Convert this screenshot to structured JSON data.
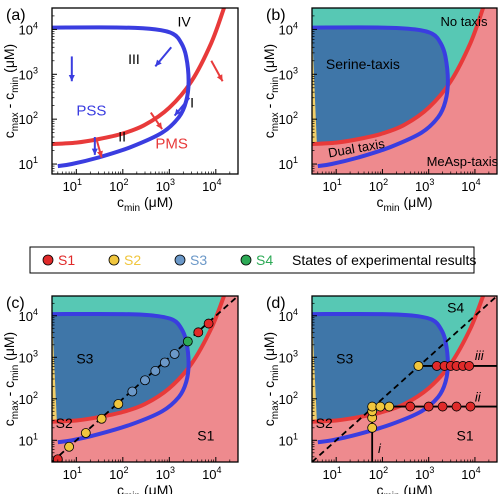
{
  "colors": {
    "blue_curve": "#3a3de0",
    "red_curve": "#e83a3a",
    "region_pms": "#ee8a8e",
    "region_serine": "#3f76a8",
    "region_dual": "#f2cf6a",
    "region_notaxis": "#57c8b4",
    "s1": "#e02a2a",
    "s2": "#f0c63e",
    "s3": "#6b98c8",
    "s4": "#2daa56"
  },
  "axis_text": {
    "xlabel_base": "c",
    "xlabel_sub": "min",
    "xlabel_unit": " (μM)",
    "ylabel": "c",
    "ylabel_sub1": "max",
    "ylabel_mid": " - c",
    "ylabel_sub2": "min",
    "ylabel_unit": " (μM)",
    "tick_base": "10",
    "x_exponents": [
      "1",
      "2",
      "3",
      "4"
    ],
    "y_exponents": [
      "1",
      "2",
      "3",
      "4"
    ]
  },
  "panels": {
    "a": {
      "label": "(a)",
      "region_labels": [
        "PSS",
        "PMS",
        "I",
        "II",
        "III",
        "IV"
      ]
    },
    "b": {
      "label": "(b)",
      "region_labels": [
        "No taxis",
        "Serine-taxis",
        "Dual taxis",
        "MeAsp-taxis"
      ]
    },
    "c": {
      "label": "(c)",
      "region_labels": [
        "S3",
        "S2",
        "S1"
      ]
    },
    "d": {
      "label": "(d)",
      "region_labels": [
        "S4",
        "S3",
        "S2",
        "S1",
        "i",
        "ii",
        "iii"
      ]
    }
  },
  "legend": {
    "items": [
      {
        "label": "S1"
      },
      {
        "label": "S2"
      },
      {
        "label": "S3"
      },
      {
        "label": "S4"
      }
    ],
    "caption": "States of experimental results"
  },
  "chart_data": [
    {
      "type": "line",
      "panel": "a",
      "xscale": "log",
      "yscale": "log",
      "xlim": [
        3,
        30000
      ],
      "ylim": [
        6,
        30000
      ],
      "series": [
        {
          "curve": "blue",
          "x": [
            3,
            100,
            500,
            1200,
            1800,
            2300,
            2600,
            2300,
            1600,
            700,
            150,
            30,
            8,
            4
          ],
          "y": [
            11000,
            11000,
            10000,
            8000,
            5000,
            2500,
            700,
            250,
            110,
            50,
            24,
            14,
            10,
            9
          ]
        },
        {
          "curve": "red",
          "x": [
            3,
            10,
            30,
            100,
            300,
            1000,
            3000,
            8000,
            15000
          ],
          "y": [
            28,
            30,
            36,
            48,
            75,
            180,
            700,
            5000,
            30000
          ]
        }
      ]
    },
    {
      "type": "area",
      "panel": "b",
      "xscale": "log",
      "yscale": "log",
      "xlim": [
        3,
        30000
      ],
      "ylim": [
        6,
        30000
      ]
    },
    {
      "type": "scatter",
      "panel": "c",
      "xscale": "log",
      "yscale": "log",
      "xlim": [
        3,
        30000
      ],
      "ylim": [
        3,
        30000
      ],
      "points": [
        {
          "state": "S1",
          "x": 4,
          "y": 3.5
        },
        {
          "state": "S2",
          "x": 7,
          "y": 7
        },
        {
          "state": "S2",
          "x": 16,
          "y": 15
        },
        {
          "state": "S2",
          "x": 35,
          "y": 33
        },
        {
          "state": "S2",
          "x": 80,
          "y": 75
        },
        {
          "state": "S3",
          "x": 160,
          "y": 150
        },
        {
          "state": "S3",
          "x": 300,
          "y": 280
        },
        {
          "state": "S3",
          "x": 500,
          "y": 470
        },
        {
          "state": "S3",
          "x": 800,
          "y": 750
        },
        {
          "state": "S3",
          "x": 1300,
          "y": 1200
        },
        {
          "state": "S4",
          "x": 2500,
          "y": 2400
        },
        {
          "state": "S1",
          "x": 4200,
          "y": 4000
        },
        {
          "state": "S1",
          "x": 7000,
          "y": 6500
        }
      ]
    },
    {
      "type": "scatter",
      "panel": "d",
      "xscale": "log",
      "yscale": "log",
      "xlim": [
        3,
        30000
      ],
      "ylim": [
        3,
        30000
      ],
      "points": [
        {
          "state": "S2",
          "line": "i",
          "x": 60,
          "y": 20
        },
        {
          "state": "S2",
          "line": "i",
          "x": 60,
          "y": 35
        },
        {
          "state": "S2",
          "line": "i",
          "x": 60,
          "y": 50
        },
        {
          "state": "S2",
          "line": "ii",
          "x": 60,
          "y": 65
        },
        {
          "state": "S2",
          "line": "ii",
          "x": 90,
          "y": 65
        },
        {
          "state": "S2",
          "line": "ii",
          "x": 140,
          "y": 65
        },
        {
          "state": "S1",
          "line": "ii",
          "x": 400,
          "y": 65
        },
        {
          "state": "S1",
          "line": "ii",
          "x": 1000,
          "y": 65
        },
        {
          "state": "S1",
          "line": "ii",
          "x": 2000,
          "y": 65
        },
        {
          "state": "S1",
          "line": "ii",
          "x": 4000,
          "y": 65
        },
        {
          "state": "S1",
          "line": "ii",
          "x": 8000,
          "y": 65
        },
        {
          "state": "S2",
          "line": "iii",
          "x": 600,
          "y": 620
        },
        {
          "state": "S1",
          "line": "iii",
          "x": 1500,
          "y": 620
        },
        {
          "state": "S1",
          "line": "iii",
          "x": 2200,
          "y": 620
        },
        {
          "state": "S1",
          "line": "iii",
          "x": 3000,
          "y": 620
        },
        {
          "state": "S1",
          "line": "iii",
          "x": 4000,
          "y": 620
        },
        {
          "state": "S1",
          "line": "iii",
          "x": 5500,
          "y": 620
        },
        {
          "state": "S1",
          "line": "iii",
          "x": 7500,
          "y": 620
        }
      ]
    }
  ]
}
